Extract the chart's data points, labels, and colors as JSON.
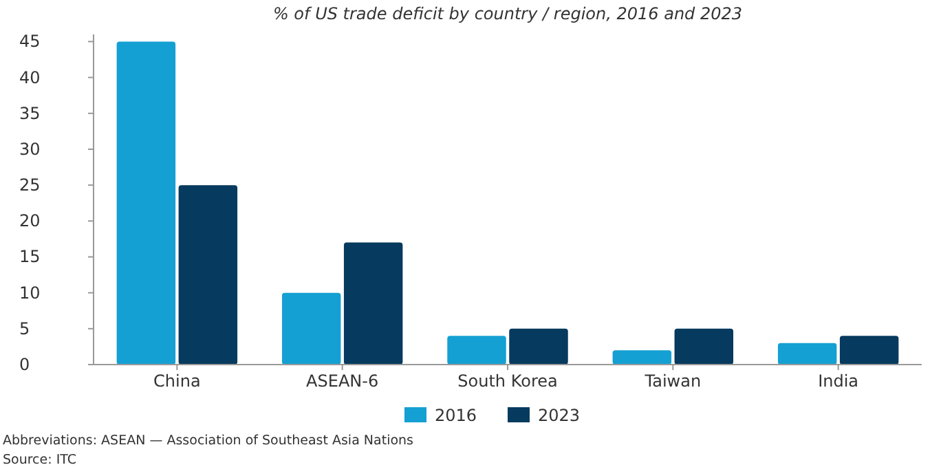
{
  "chart_data": {
    "type": "bar",
    "title": "% of US trade deficit by country / region, 2016 and 2023",
    "categories": [
      "China",
      "ASEAN-6",
      "South Korea",
      "Taiwan",
      "India"
    ],
    "series": [
      {
        "name": "2016",
        "color": "#14a0d2",
        "values": [
          45,
          10,
          4,
          2,
          3
        ]
      },
      {
        "name": "2023",
        "color": "#063a5e",
        "values": [
          25,
          17,
          5,
          5,
          4
        ]
      }
    ],
    "ylim": [
      0,
      46
    ],
    "yticks": [
      0,
      5,
      10,
      15,
      20,
      25,
      30,
      35,
      40,
      45
    ],
    "grid": false,
    "legend": "bottom",
    "annotations": [
      "Abbreviations: ASEAN — Association of Southeast Asia Nations",
      "Source: ITC"
    ]
  }
}
